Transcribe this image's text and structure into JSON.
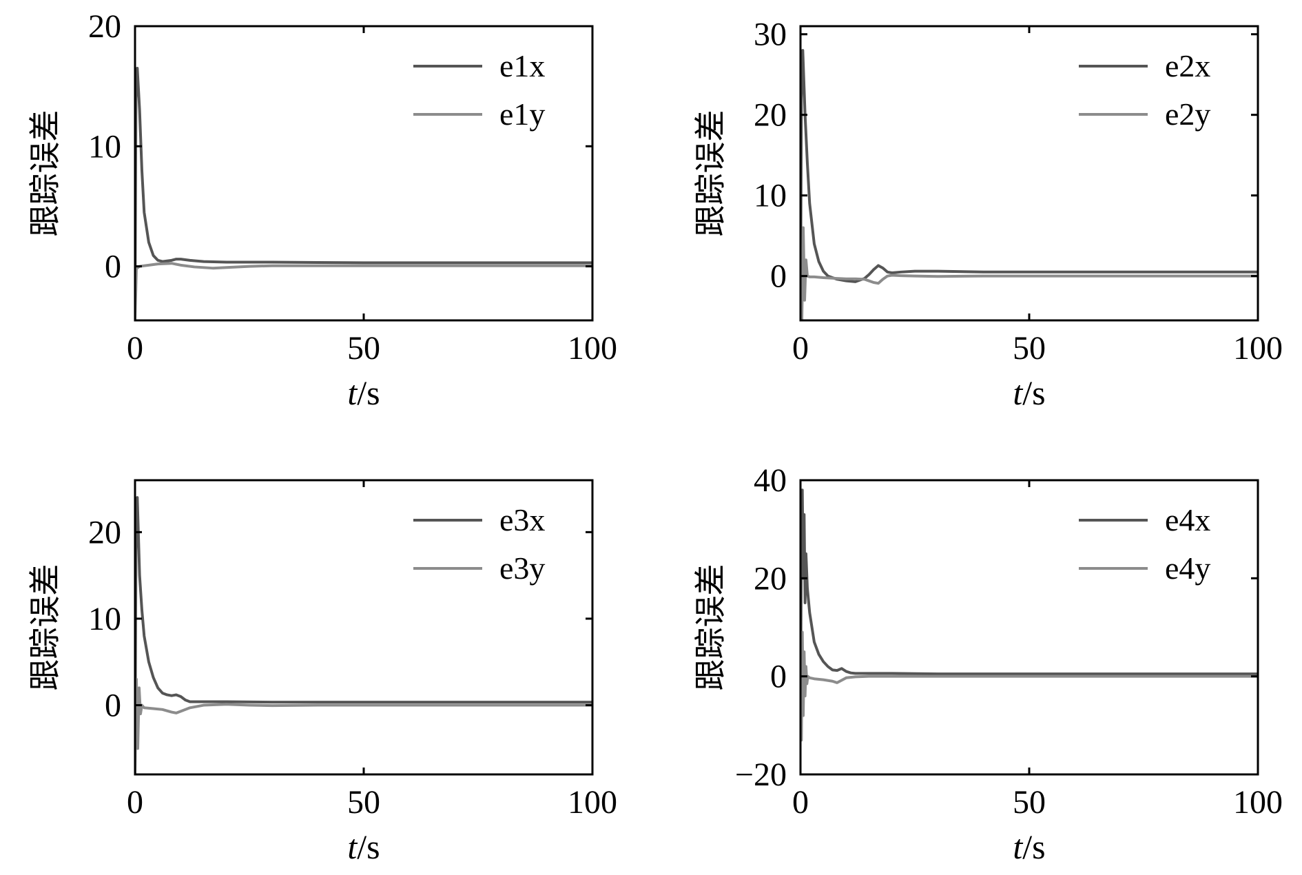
{
  "figure": {
    "x_label_var": "t",
    "x_label_unit": "/s",
    "y_label": "跟踪误差"
  },
  "colors": {
    "series_x": "#555555",
    "series_y": "#8c8c8c",
    "axis": "#000000"
  },
  "chart_data": [
    {
      "type": "line",
      "xlim": [
        0,
        100
      ],
      "ylim": [
        -4.5,
        20
      ],
      "xticks": [
        0,
        50,
        100
      ],
      "xtick_labels": [
        "0",
        "50",
        "100"
      ],
      "yticks": [
        0,
        10,
        20
      ],
      "ytick_labels": [
        "0",
        "10",
        "20"
      ],
      "xlabel": "t/s",
      "ylabel": "跟踪误差",
      "legend_position": "top-right",
      "grid": false,
      "series": [
        {
          "name": "e1x",
          "x": [
            0,
            0.2,
            0.5,
            1,
            1.5,
            2,
            3,
            4,
            5,
            6,
            8,
            9,
            10,
            12,
            15,
            20,
            25,
            30,
            40,
            50,
            60,
            70,
            80,
            90,
            100
          ],
          "y": [
            -4.5,
            14,
            16.5,
            13,
            8,
            4.5,
            2,
            0.9,
            0.5,
            0.4,
            0.5,
            0.6,
            0.6,
            0.5,
            0.4,
            0.35,
            0.35,
            0.35,
            0.32,
            0.3,
            0.3,
            0.3,
            0.3,
            0.3,
            0.3
          ]
        },
        {
          "name": "e1y",
          "x": [
            0,
            0.3,
            1,
            3,
            5,
            8,
            10,
            13,
            17,
            20,
            25,
            30,
            40,
            50,
            60,
            70,
            80,
            90,
            100
          ],
          "y": [
            -4.5,
            -0.2,
            0,
            0.1,
            0.2,
            0.25,
            0.1,
            -0.05,
            -0.15,
            -0.1,
            0,
            0.05,
            0.05,
            0.05,
            0.05,
            0.05,
            0.05,
            0.05,
            0.05
          ]
        }
      ]
    },
    {
      "type": "line",
      "xlim": [
        0,
        100
      ],
      "ylim": [
        -5.5,
        31
      ],
      "xticks": [
        0,
        50,
        100
      ],
      "xtick_labels": [
        "0",
        "50",
        "100"
      ],
      "yticks": [
        0,
        10,
        20,
        30
      ],
      "ytick_labels": [
        "0",
        "10",
        "20",
        "30"
      ],
      "xlabel": "t/s",
      "ylabel": "跟踪误差",
      "legend_position": "top-right",
      "grid": false,
      "series": [
        {
          "name": "e2x",
          "x": [
            0,
            0.2,
            0.5,
            1,
            1.5,
            2,
            3,
            4,
            5,
            6,
            8,
            10,
            12,
            14,
            15,
            16,
            17,
            18,
            19,
            20,
            22,
            25,
            30,
            40,
            50,
            60,
            70,
            80,
            90,
            100
          ],
          "y": [
            -5,
            22,
            28,
            20,
            14,
            9,
            4,
            1.8,
            0.6,
            0,
            -0.4,
            -0.6,
            -0.7,
            -0.3,
            0.2,
            0.8,
            1.3,
            1,
            0.5,
            0.4,
            0.5,
            0.6,
            0.6,
            0.5,
            0.5,
            0.5,
            0.5,
            0.5,
            0.5,
            0.5
          ]
        },
        {
          "name": "e2y",
          "x": [
            0,
            0.3,
            0.6,
            0.9,
            1.2,
            1.5,
            2,
            3,
            5,
            8,
            10,
            12,
            14,
            15,
            16,
            17,
            18,
            19,
            20,
            22,
            25,
            30,
            40,
            50,
            60,
            70,
            80,
            90,
            100
          ],
          "y": [
            0,
            -5.5,
            6,
            -3,
            2,
            0,
            -0.1,
            -0.1,
            -0.2,
            -0.3,
            -0.35,
            -0.35,
            -0.4,
            -0.6,
            -0.8,
            -0.9,
            -0.4,
            0,
            0.1,
            0.05,
            0,
            -0.05,
            0,
            0,
            0,
            0,
            0,
            0,
            0
          ]
        }
      ]
    },
    {
      "type": "line",
      "xlim": [
        0,
        100
      ],
      "ylim": [
        -8,
        26
      ],
      "xticks": [
        0,
        50,
        100
      ],
      "xtick_labels": [
        "0",
        "50",
        "100"
      ],
      "yticks": [
        0,
        10,
        20
      ],
      "ytick_labels": [
        "0",
        "10",
        "20"
      ],
      "xlabel": "t/s",
      "ylabel": "跟踪误差",
      "legend_position": "top-right",
      "grid": false,
      "series": [
        {
          "name": "e3x",
          "x": [
            0,
            0.2,
            0.5,
            1,
            1.5,
            2,
            3,
            4,
            5,
            6,
            7,
            8,
            9,
            10,
            11,
            12,
            15,
            20,
            30,
            40,
            50,
            60,
            70,
            80,
            90,
            100
          ],
          "y": [
            -8,
            18,
            24,
            15,
            11,
            8,
            5,
            3.2,
            2,
            1.4,
            1.2,
            1.1,
            1.2,
            1.0,
            0.6,
            0.4,
            0.4,
            0.4,
            0.35,
            0.35,
            0.35,
            0.35,
            0.35,
            0.35,
            0.35,
            0.35
          ]
        },
        {
          "name": "e3y",
          "x": [
            0,
            0.3,
            0.6,
            0.9,
            1.2,
            1.5,
            2,
            4,
            6,
            8,
            9,
            10,
            12,
            15,
            20,
            25,
            30,
            40,
            50,
            60,
            70,
            80,
            90,
            100
          ],
          "y": [
            -8,
            3,
            -5,
            2,
            -1,
            0,
            -0.3,
            -0.4,
            -0.5,
            -0.8,
            -0.9,
            -0.7,
            -0.3,
            0,
            0.1,
            0,
            -0.05,
            0,
            0,
            0,
            0,
            0,
            0,
            0
          ]
        }
      ]
    },
    {
      "type": "line",
      "xlim": [
        0,
        100
      ],
      "ylim": [
        -20,
        40
      ],
      "xticks": [
        0,
        50,
        100
      ],
      "xtick_labels": [
        "0",
        "50",
        "100"
      ],
      "yticks": [
        -20,
        0,
        20,
        40
      ],
      "ytick_labels": [
        "−20",
        "0",
        "20",
        "40"
      ],
      "xlabel": "t/s",
      "ylabel": "跟踪误差",
      "legend_position": "top-right",
      "grid": false,
      "series": [
        {
          "name": "e4x",
          "x": [
            0,
            0.2,
            0.4,
            0.6,
            0.8,
            1,
            1.2,
            1.5,
            2,
            3,
            4,
            5,
            6,
            7,
            8,
            9,
            10,
            11,
            12,
            15,
            20,
            30,
            40,
            50,
            60,
            70,
            80,
            90,
            100
          ],
          "y": [
            -10,
            30,
            38,
            20,
            33,
            15,
            25,
            18,
            13,
            7,
            4.5,
            3,
            2,
            1.3,
            1.2,
            1.6,
            1.0,
            0.7,
            0.6,
            0.6,
            0.6,
            0.5,
            0.5,
            0.5,
            0.5,
            0.5,
            0.5,
            0.5,
            0.5
          ]
        },
        {
          "name": "e4y",
          "x": [
            0,
            0.2,
            0.4,
            0.6,
            0.8,
            1,
            1.2,
            1.4,
            1.6,
            2,
            3,
            5,
            7,
            8,
            9,
            10,
            12,
            15,
            20,
            30,
            40,
            50,
            60,
            70,
            80,
            90,
            100
          ],
          "y": [
            0,
            -13,
            9,
            -8,
            5,
            -4,
            2,
            -1.5,
            0,
            -0.3,
            -0.5,
            -0.7,
            -1.0,
            -1.3,
            -0.8,
            -0.3,
            -0.1,
            0,
            0,
            0,
            0,
            0,
            0,
            0,
            0,
            0,
            0
          ]
        }
      ]
    }
  ]
}
